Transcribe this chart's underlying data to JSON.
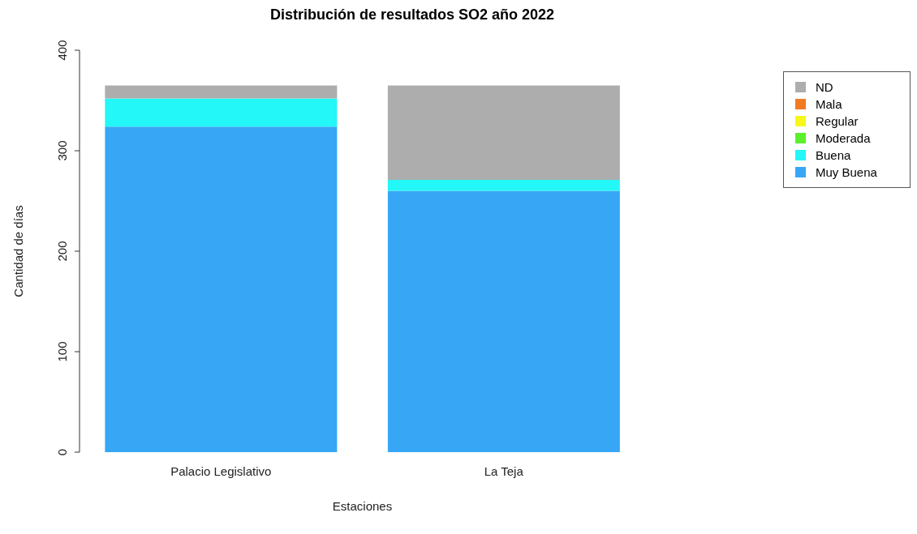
{
  "chart_data": {
    "type": "bar",
    "title": "Distribución de resultados SO2 año 2022",
    "xlabel": "Estaciones",
    "ylabel": "Cantidad de días",
    "categories": [
      "Palacio Legislativo",
      "La Teja"
    ],
    "stacked": true,
    "ylim": [
      0,
      400
    ],
    "yticks": [
      0,
      100,
      200,
      300,
      400
    ],
    "grid": false,
    "legend": "top right",
    "series": [
      {
        "name": "Muy Buena",
        "color": "#37a7f5",
        "values": [
          324,
          260
        ]
      },
      {
        "name": "Buena",
        "color": "#23f7f7",
        "values": [
          28,
          11
        ]
      },
      {
        "name": "Moderada",
        "color": "#5cf02c",
        "values": [
          0,
          0
        ]
      },
      {
        "name": "Regular",
        "color": "#f7f71c",
        "values": [
          0,
          0
        ]
      },
      {
        "name": "Mala",
        "color": "#f07b22",
        "values": [
          0,
          0
        ]
      },
      {
        "name": "ND",
        "color": "#adadad",
        "values": [
          13,
          94
        ]
      }
    ]
  }
}
